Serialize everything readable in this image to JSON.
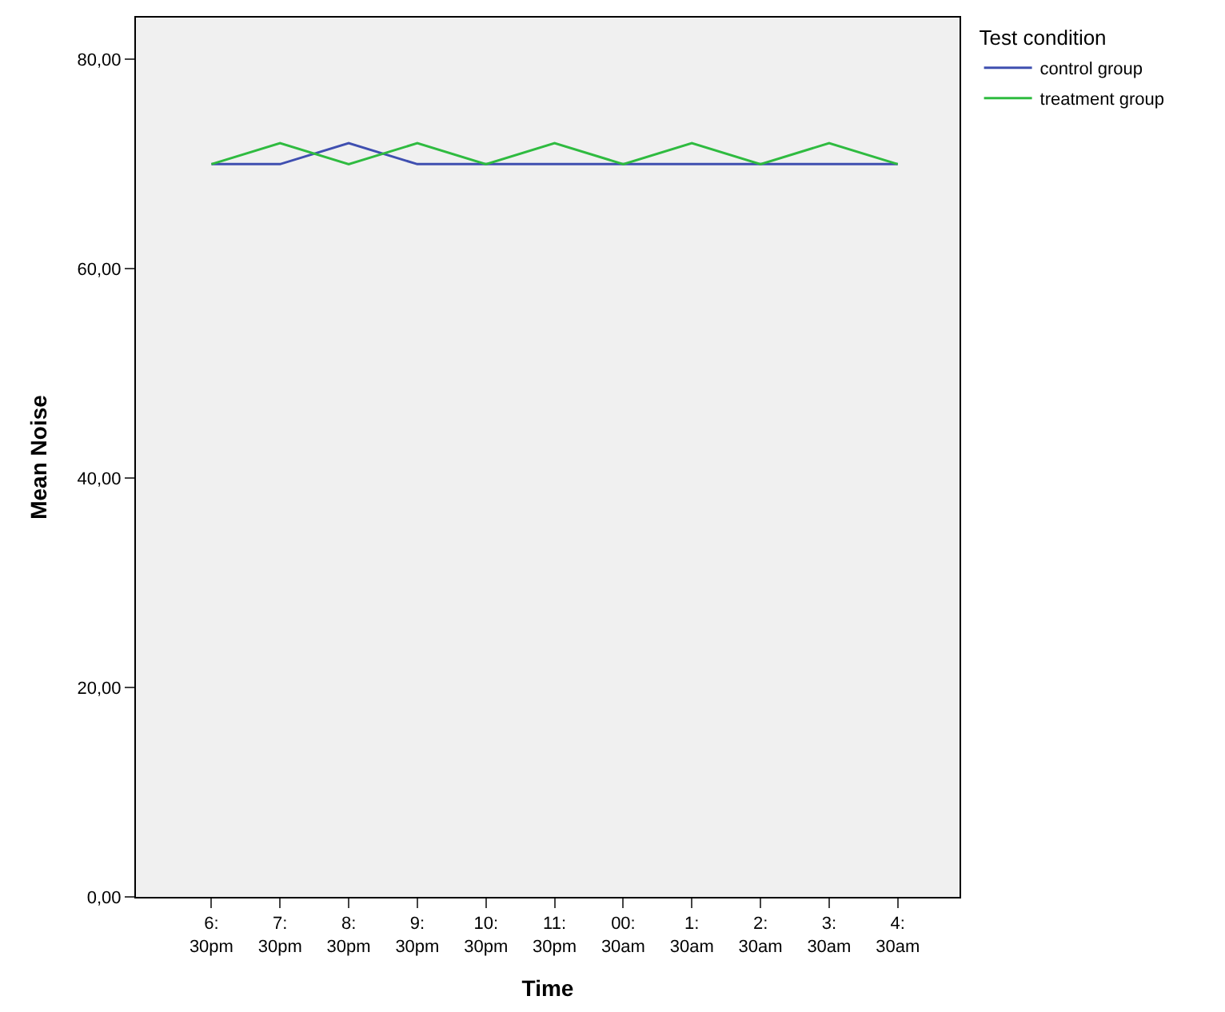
{
  "chart_data": {
    "type": "line",
    "xlabel": "Time",
    "ylabel": "Mean Noise",
    "legend_title": "Test condition",
    "categories": [
      "6:\n30pm",
      "7:\n30pm",
      "8:\n30pm",
      "9:\n30pm",
      "10:\n30pm",
      "11:\n30pm",
      "00:\n30am",
      "1:\n30am",
      "2:\n30am",
      "3:\n30am",
      "4:\n30am"
    ],
    "series": [
      {
        "name": "control group",
        "color": "#3f4fb0",
        "values": [
          70,
          70,
          72,
          70,
          70,
          70,
          70,
          70,
          70,
          70,
          70
        ]
      },
      {
        "name": "treatment group",
        "color": "#2fbb40",
        "values": [
          70,
          72,
          70,
          72,
          70,
          72,
          70,
          72,
          70,
          72,
          70
        ]
      }
    ],
    "ylim": [
      0,
      84
    ],
    "yticks": [
      {
        "value": 0,
        "label": "0,00"
      },
      {
        "value": 20,
        "label": "20,00"
      },
      {
        "value": 40,
        "label": "40,00"
      },
      {
        "value": 60,
        "label": "60,00"
      },
      {
        "value": 80,
        "label": "80,00"
      }
    ],
    "grid": false,
    "legend": "top right",
    "marker": "none",
    "line_style": "solid"
  }
}
